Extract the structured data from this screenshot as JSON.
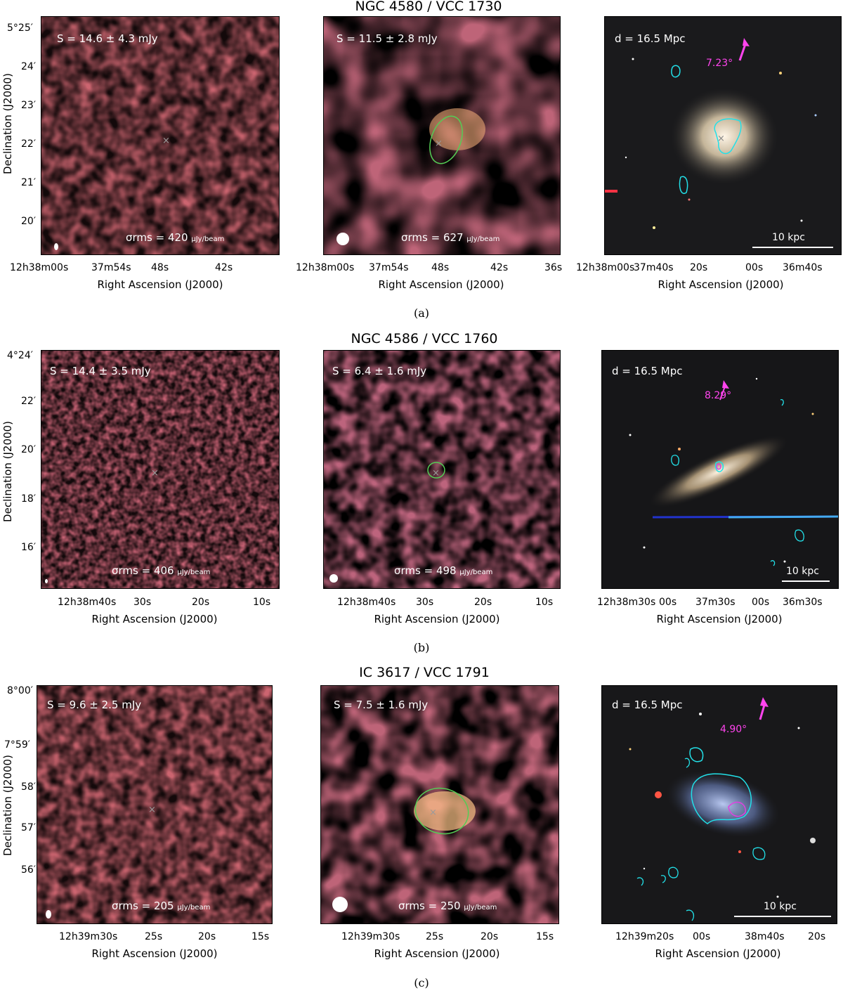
{
  "rows": [
    {
      "caption": "(a)",
      "title": "NGC 4580 / VCC 1730",
      "left": {
        "flux": "S = 14.6 ± 4.3 mJy",
        "rms": "σrms = 420",
        "rms_unit": "μJy/beam",
        "xticks": [
          "12h38m00s",
          "37m54s",
          "48s",
          "42s"
        ],
        "yticks": [
          "5°25′",
          "24′",
          "23′",
          "22′",
          "21′",
          "20′"
        ]
      },
      "mid": {
        "flux": "S = 11.5 ± 2.8 mJy",
        "rms": "σrms = 627",
        "rms_unit": "μJy/beam",
        "xticks": [
          "12h38m00s",
          "37m54s",
          "48s",
          "42s",
          "36s"
        ]
      },
      "right": {
        "distance": "d = 16.5 Mpc",
        "angle": "7.23°",
        "scale": "10 kpc",
        "xticks": [
          "12h38m00s",
          "37m40s",
          "20s",
          "00s",
          "36m40s"
        ]
      }
    },
    {
      "caption": "(b)",
      "title": "NGC 4586 / VCC 1760",
      "left": {
        "flux": "S = 14.4 ± 3.5 mJy",
        "rms": "σrms = 406",
        "rms_unit": "μJy/beam",
        "xticks": [
          "12h38m40s",
          "30s",
          "20s",
          "10s"
        ],
        "yticks": [
          "4°24′",
          "22′",
          "20′",
          "18′",
          "16′"
        ]
      },
      "mid": {
        "flux": "S = 6.4 ± 1.6 mJy",
        "rms": "σrms = 498",
        "rms_unit": "μJy/beam",
        "xticks": [
          "12h38m40s",
          "30s",
          "20s",
          "10s"
        ]
      },
      "right": {
        "distance": "d = 16.5 Mpc",
        "angle": "8.29°",
        "scale": "10 kpc",
        "xticks": [
          "12h38m30s",
          "00s",
          "37m30s",
          "00s",
          "36m30s"
        ]
      }
    },
    {
      "caption": "(c)",
      "title": "IC 3617 / VCC 1791",
      "left": {
        "flux": "S = 9.6 ± 2.5 mJy",
        "rms": "σrms = 205",
        "rms_unit": "μJy/beam",
        "xticks": [
          "12h39m30s",
          "25s",
          "20s",
          "15s"
        ],
        "yticks": [
          "8°00′",
          "7°59′",
          "58′",
          "57′",
          "56′"
        ]
      },
      "mid": {
        "flux": "S = 7.5 ± 1.6 mJy",
        "rms": "σrms = 250",
        "rms_unit": "μJy/beam",
        "xticks": [
          "12h39m30s",
          "25s",
          "20s",
          "15s"
        ]
      },
      "right": {
        "distance": "d = 16.5 Mpc",
        "angle": "4.90°",
        "scale": "10 kpc",
        "xticks": [
          "12h39m20s",
          "00s",
          "38m40s",
          "20s"
        ]
      }
    }
  ],
  "axis_labels": {
    "x": "Right Ascension (J2000)",
    "y": "Declination (J2000)"
  },
  "colors": {
    "map_dark": "#1a0a2e",
    "map_purple": "#6a2e8c",
    "map_orange": "#f2a26a",
    "contour_cyan": "#22e0e8",
    "contour_magenta": "#e040e0",
    "ellipse_green": "#55cc55",
    "angle_magenta": "#ff44ee"
  }
}
